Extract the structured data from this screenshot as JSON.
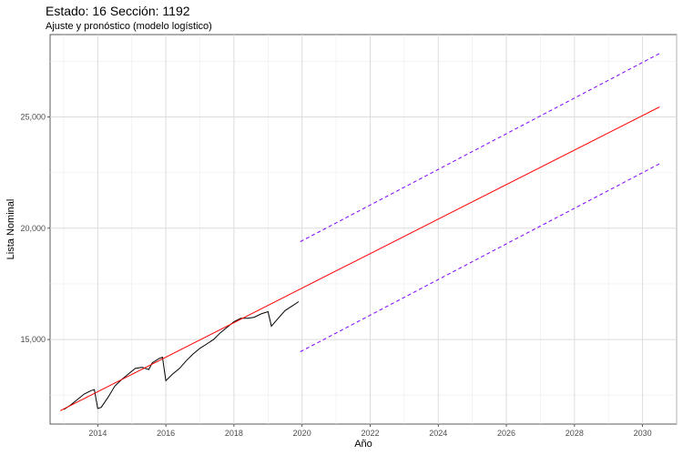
{
  "chart_data": {
    "type": "line",
    "title": "Estado: 16 Sección: 1192",
    "subtitle": "Ajuste y pronóstico (modelo logístico)",
    "xlabel": "Año",
    "ylabel": "Lista Nominal",
    "xlim": [
      2012.6,
      2031.0
    ],
    "ylim": [
      11200,
      28700
    ],
    "x_ticks": [
      2014,
      2016,
      2018,
      2020,
      2022,
      2024,
      2026,
      2028,
      2030
    ],
    "x_tick_labels": [
      "2014",
      "2016",
      "2018",
      "2020",
      "2022",
      "2024",
      "2026",
      "2028",
      "2030"
    ],
    "y_ticks": [
      15000,
      20000,
      25000
    ],
    "y_tick_labels": [
      "15,000",
      "20,000",
      "25,000"
    ],
    "grid": true,
    "series": [
      {
        "role": "observed",
        "color": "#000000",
        "style": "solid",
        "x": [
          2013.0,
          2013.2,
          2013.4,
          2013.6,
          2013.8,
          2013.9,
          2014.0,
          2014.1,
          2014.3,
          2014.5,
          2014.7,
          2014.9,
          2015.1,
          2015.3,
          2015.5,
          2015.6,
          2015.8,
          2015.9,
          2016.0,
          2016.2,
          2016.4,
          2016.6,
          2016.8,
          2017.0,
          2017.2,
          2017.4,
          2017.6,
          2017.8,
          2018.0,
          2018.2,
          2018.4,
          2018.6,
          2018.8,
          2019.0,
          2019.1,
          2019.3,
          2019.5,
          2019.7,
          2019.9
        ],
        "y": [
          11850,
          12050,
          12300,
          12550,
          12700,
          12750,
          11900,
          11950,
          12400,
          12900,
          13200,
          13450,
          13700,
          13750,
          13650,
          13950,
          14150,
          14200,
          13150,
          13450,
          13700,
          14050,
          14350,
          14600,
          14800,
          15000,
          15300,
          15550,
          15800,
          15950,
          15950,
          16000,
          16150,
          16250,
          15600,
          15950,
          16300,
          16500,
          16700
        ]
      },
      {
        "role": "fit",
        "color": "#ff0000",
        "style": "solid",
        "x": [
          2012.9,
          2030.5
        ],
        "y": [
          11800,
          25450
        ]
      },
      {
        "role": "upper",
        "color": "#7f00ff",
        "style": "dashed",
        "x": [
          2019.95,
          2030.5
        ],
        "y": [
          19400,
          27850
        ]
      },
      {
        "role": "lower",
        "color": "#7f00ff",
        "style": "dashed",
        "x": [
          2019.95,
          2030.5
        ],
        "y": [
          14450,
          22900
        ]
      }
    ]
  }
}
